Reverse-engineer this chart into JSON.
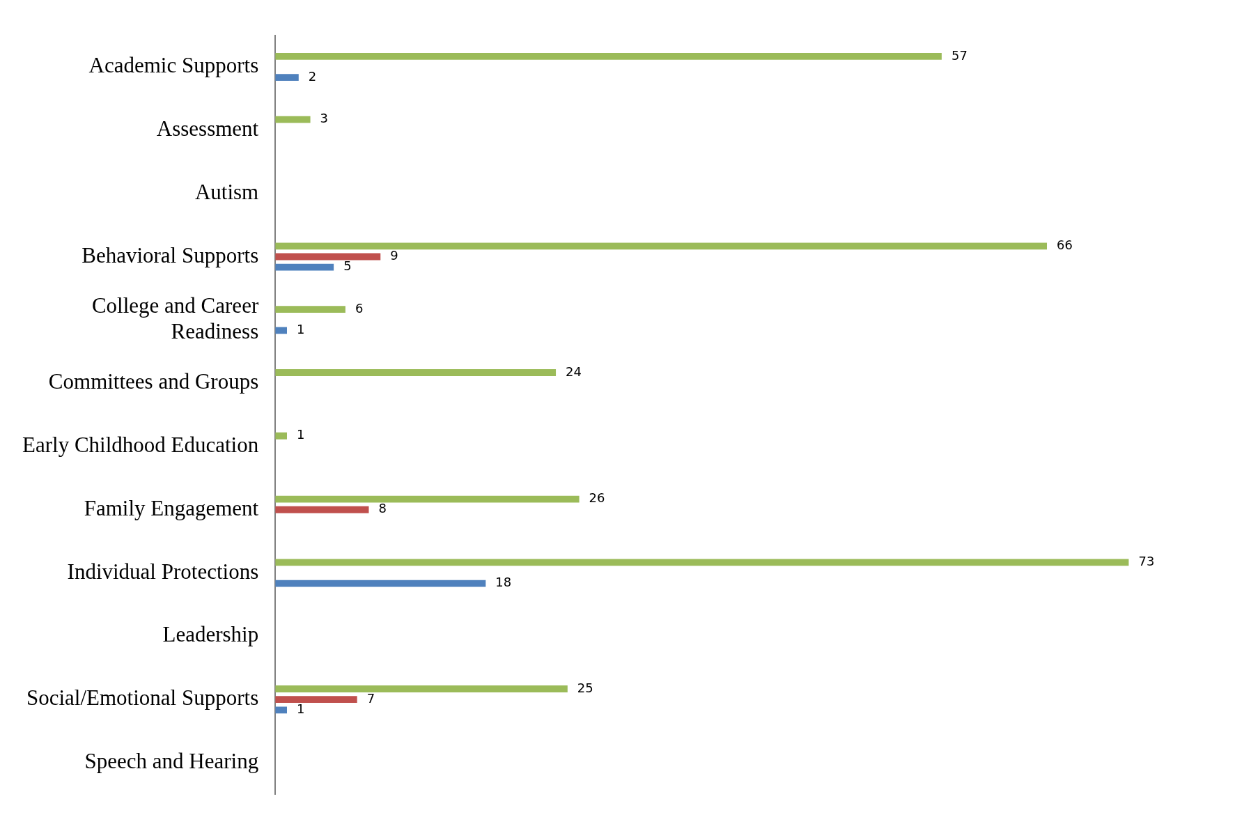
{
  "chart_data": {
    "type": "bar",
    "orientation": "horizontal",
    "data_labels": true,
    "categories": [
      "Academic Supports",
      "Assessment",
      "Autism",
      "Behavioral Supports",
      "College and Career Readiness",
      "Committees and Groups",
      "Early Childhood Education",
      "Family Engagement",
      "Individual Protections",
      "Leadership",
      "Social/Emotional Supports",
      "Speech and Hearing"
    ],
    "series": [
      {
        "color": "#9bbb59",
        "values": [
          57,
          3,
          null,
          66,
          6,
          24,
          1,
          26,
          73,
          null,
          25,
          null
        ]
      },
      {
        "color": "#c0504d",
        "values": [
          null,
          null,
          null,
          9,
          null,
          null,
          null,
          8,
          null,
          null,
          7,
          null
        ]
      },
      {
        "color": "#4f81bd",
        "values": [
          2,
          null,
          null,
          5,
          1,
          null,
          null,
          null,
          18,
          null,
          1,
          null
        ]
      }
    ]
  }
}
